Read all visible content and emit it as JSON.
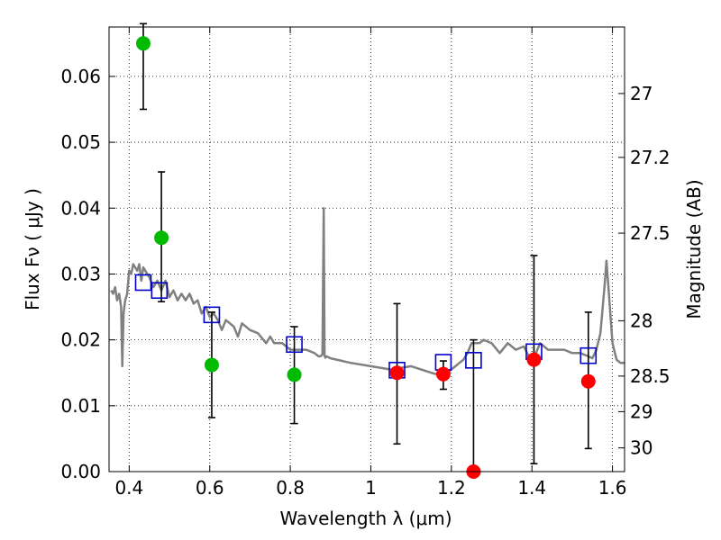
{
  "chart_data": {
    "type": "scatter",
    "xlabel": "Wavelength  λ (μm)",
    "ylabel": "Flux  Fν  ( μJy )",
    "y2label": "Magnitude (AB)",
    "xlim": [
      0.35,
      1.63
    ],
    "ylim": [
      0.0,
      0.0675
    ],
    "grid": true,
    "x_ticks": [
      {
        "value": 0.4,
        "label": "0.4"
      },
      {
        "value": 0.6,
        "label": "0.6"
      },
      {
        "value": 0.8,
        "label": "0.8"
      },
      {
        "value": 1.0,
        "label": "1"
      },
      {
        "value": 1.2,
        "label": "1.2"
      },
      {
        "value": 1.4,
        "label": "1.4"
      },
      {
        "value": 1.6,
        "label": "1.6"
      }
    ],
    "y_ticks": [
      {
        "value": 0.0,
        "label": "0.00"
      },
      {
        "value": 0.01,
        "label": "0.01"
      },
      {
        "value": 0.02,
        "label": "0.02"
      },
      {
        "value": 0.03,
        "label": "0.03"
      },
      {
        "value": 0.04,
        "label": "0.04"
      },
      {
        "value": 0.05,
        "label": "0.05"
      },
      {
        "value": 0.06,
        "label": "0.06"
      }
    ],
    "y2_ticks": [
      {
        "flux": 0.0574,
        "label": "27"
      },
      {
        "flux": 0.0477,
        "label": "27.2"
      },
      {
        "flux": 0.0362,
        "label": "27.5"
      },
      {
        "flux": 0.0229,
        "label": "28"
      },
      {
        "flux": 0.0145,
        "label": "28.5"
      },
      {
        "flux": 0.0091,
        "label": "29"
      },
      {
        "flux": 0.0036,
        "label": "30"
      }
    ],
    "model_spectrum": {
      "name": "model SED",
      "color": "#808080",
      "x": [
        0.355,
        0.36,
        0.365,
        0.37,
        0.375,
        0.38,
        0.383,
        0.386,
        0.39,
        0.395,
        0.4,
        0.405,
        0.41,
        0.415,
        0.42,
        0.425,
        0.43,
        0.435,
        0.44,
        0.45,
        0.46,
        0.47,
        0.48,
        0.49,
        0.5,
        0.51,
        0.52,
        0.53,
        0.54,
        0.55,
        0.56,
        0.57,
        0.58,
        0.59,
        0.6,
        0.61,
        0.62,
        0.63,
        0.64,
        0.65,
        0.66,
        0.67,
        0.68,
        0.7,
        0.72,
        0.74,
        0.75,
        0.76,
        0.78,
        0.8,
        0.82,
        0.84,
        0.86,
        0.87,
        0.875,
        0.88,
        0.883,
        0.885,
        0.887,
        0.89,
        0.9,
        0.95,
        1.0,
        1.05,
        1.1,
        1.15,
        1.18,
        1.2,
        1.22,
        1.23,
        1.24,
        1.25,
        1.27,
        1.28,
        1.3,
        1.32,
        1.34,
        1.36,
        1.38,
        1.4,
        1.42,
        1.44,
        1.46,
        1.48,
        1.5,
        1.52,
        1.54,
        1.55,
        1.56,
        1.57,
        1.58,
        1.585,
        1.59,
        1.6,
        1.61,
        1.62,
        1.63
      ],
      "y": [
        0.0275,
        0.027,
        0.028,
        0.026,
        0.027,
        0.025,
        0.016,
        0.024,
        0.026,
        0.027,
        0.0305,
        0.03,
        0.0315,
        0.031,
        0.0305,
        0.0315,
        0.029,
        0.031,
        0.0305,
        0.0295,
        0.028,
        0.029,
        0.0275,
        0.029,
        0.0265,
        0.0275,
        0.026,
        0.027,
        0.026,
        0.027,
        0.0255,
        0.026,
        0.024,
        0.025,
        0.0235,
        0.024,
        0.023,
        0.0215,
        0.023,
        0.0225,
        0.022,
        0.0205,
        0.0225,
        0.0215,
        0.021,
        0.0195,
        0.0205,
        0.0195,
        0.0195,
        0.0185,
        0.0185,
        0.0185,
        0.018,
        0.0175,
        0.0175,
        0.0178,
        0.04,
        0.0176,
        0.0173,
        0.0175,
        0.0172,
        0.0165,
        0.016,
        0.0155,
        0.016,
        0.015,
        0.0145,
        0.0155,
        0.0165,
        0.017,
        0.018,
        0.0195,
        0.0195,
        0.02,
        0.0195,
        0.018,
        0.0195,
        0.0185,
        0.019,
        0.0165,
        0.0195,
        0.0185,
        0.0185,
        0.0185,
        0.018,
        0.018,
        0.0175,
        0.0172,
        0.0185,
        0.021,
        0.028,
        0.032,
        0.028,
        0.0195,
        0.017,
        0.0165,
        0.0165
      ]
    },
    "series": [
      {
        "name": "green detections",
        "color": "#00bb00",
        "marker": "circle",
        "points": [
          {
            "x": 0.435,
            "y": 0.065,
            "err_low": 0.055,
            "err_high": 0.068
          },
          {
            "x": 0.48,
            "y": 0.0355,
            "err_low": 0.0258,
            "err_high": 0.0455
          },
          {
            "x": 0.605,
            "y": 0.0162,
            "err_low": 0.0082,
            "err_high": 0.0242
          },
          {
            "x": 0.81,
            "y": 0.0147,
            "err_low": 0.0073,
            "err_high": 0.022
          }
        ]
      },
      {
        "name": "red detections",
        "color": "#ff0000",
        "marker": "circle",
        "points": [
          {
            "x": 1.065,
            "y": 0.015,
            "err_low": 0.0042,
            "err_high": 0.0255
          },
          {
            "x": 1.18,
            "y": 0.0148,
            "err_low": 0.0125,
            "err_high": 0.0168
          },
          {
            "x": 1.255,
            "y": 0.0,
            "err_low": 0.0,
            "err_high": 0.02
          },
          {
            "x": 1.405,
            "y": 0.017,
            "err_low": 0.0012,
            "err_high": 0.0328
          },
          {
            "x": 1.54,
            "y": 0.0137,
            "err_low": 0.0035,
            "err_high": 0.0242
          }
        ]
      },
      {
        "name": "model photometry",
        "color": "#0000cc",
        "marker": "open-square",
        "points": [
          {
            "x": 0.435,
            "y": 0.0287
          },
          {
            "x": 0.475,
            "y": 0.0275
          },
          {
            "x": 0.605,
            "y": 0.0238
          },
          {
            "x": 0.81,
            "y": 0.0193
          },
          {
            "x": 1.065,
            "y": 0.0154
          },
          {
            "x": 1.18,
            "y": 0.0166
          },
          {
            "x": 1.255,
            "y": 0.0169
          },
          {
            "x": 1.405,
            "y": 0.0182
          },
          {
            "x": 1.54,
            "y": 0.0176
          }
        ]
      }
    ]
  }
}
